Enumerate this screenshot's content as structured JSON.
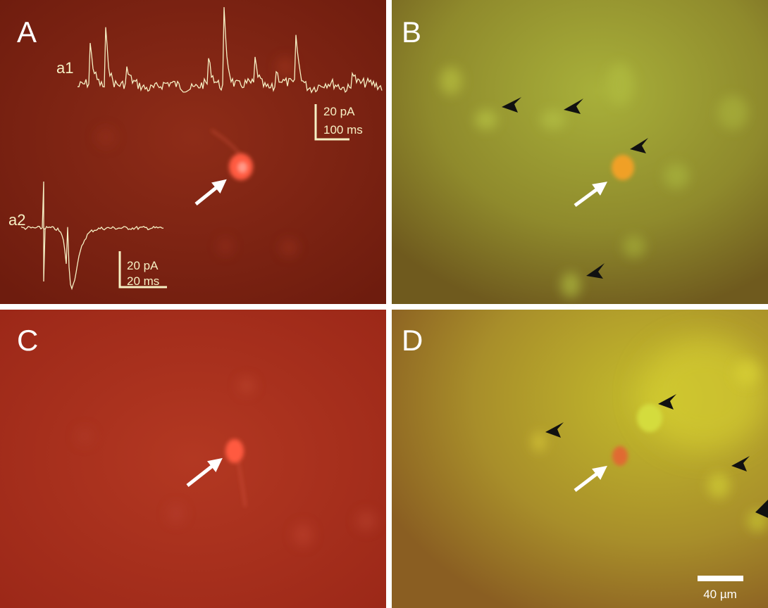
{
  "panels": [
    {
      "label": "A"
    },
    {
      "label": "B"
    },
    {
      "label": "C"
    },
    {
      "label": "D"
    }
  ],
  "traces": [
    {
      "label": "a1",
      "scale_y": "20 pA",
      "scale_x": "100 ms"
    },
    {
      "label": "a2",
      "scale_y": "20 pA",
      "scale_x": "20 ms"
    }
  ],
  "scale_bar": "40 µm"
}
